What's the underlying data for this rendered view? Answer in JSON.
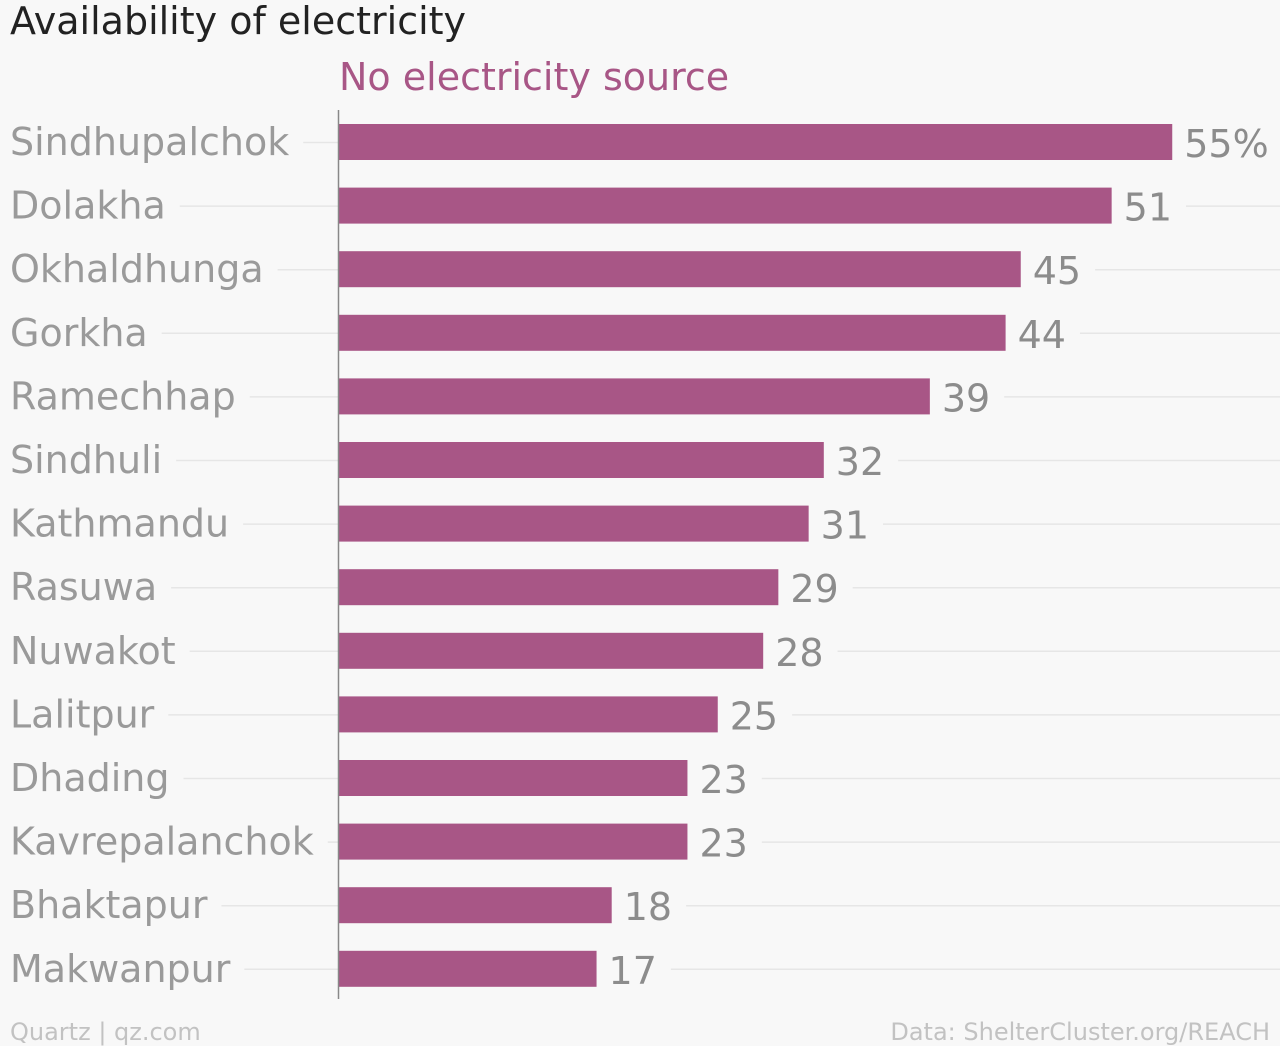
{
  "chart_data": {
    "type": "bar",
    "orientation": "horizontal",
    "title": "Availability of electricity",
    "series": [
      {
        "name": "No electricity source",
        "values": [
          55,
          51,
          45,
          44,
          39,
          32,
          31,
          29,
          28,
          25,
          23,
          23,
          18,
          17
        ]
      }
    ],
    "categories": [
      "Sindhupalchok",
      "Dolakha",
      "Okhaldhunga",
      "Gorkha",
      "Ramechhap",
      "Sindhuli",
      "Kathmandu",
      "Rasuwa",
      "Nuwakot",
      "Lalitpur",
      "Dhading",
      "Kavrepalanchok",
      "Bhaktapur",
      "Makwanpur"
    ],
    "value_labels": [
      "55%",
      "51",
      "45",
      "44",
      "39",
      "32",
      "31",
      "29",
      "28",
      "25",
      "23",
      "23",
      "18",
      "17"
    ],
    "xlim": [
      0,
      55
    ],
    "grid": true,
    "colors": {
      "bar": "#a85686",
      "series_label": "#a85686"
    }
  },
  "footer": {
    "credit": "Quartz | qz.com",
    "source": "Data: ShelterCluster.org/REACH"
  }
}
